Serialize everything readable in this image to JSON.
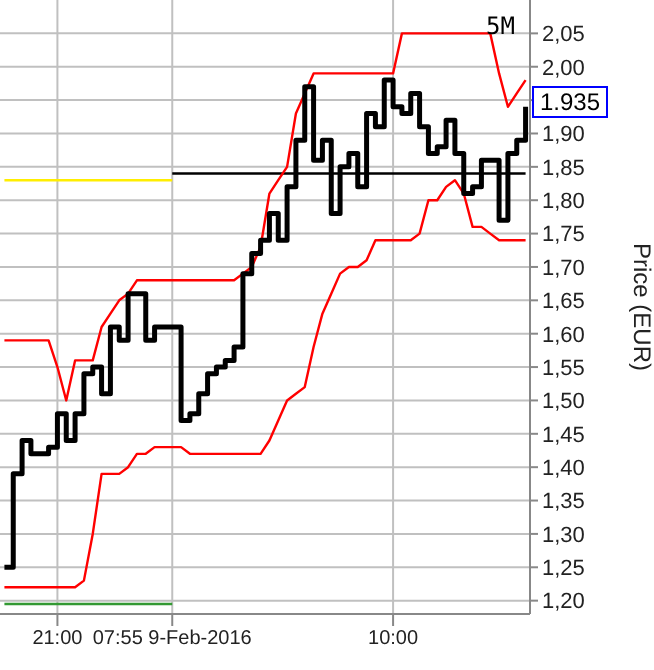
{
  "chart_data": {
    "type": "step",
    "ylabel": "Price (EUR)",
    "annotations": [
      "5M",
      "1.935"
    ],
    "categories": [
      null,
      null,
      null,
      null,
      null,
      null,
      "21:00",
      null,
      null,
      null,
      null,
      null,
      null,
      null,
      null,
      null,
      null,
      null,
      null,
      "07:55 9-Feb-2016",
      null,
      null,
      null,
      null,
      null,
      null,
      null,
      null,
      null,
      null,
      null,
      null,
      null,
      null,
      null,
      null,
      null,
      null,
      null,
      null,
      null,
      null,
      null,
      null,
      "10:00",
      null,
      null,
      null,
      null,
      null,
      null,
      null,
      null,
      null,
      null,
      null,
      null,
      null,
      null,
      null
    ],
    "ylim": [
      1.18,
      2.1
    ],
    "yticks": [
      {
        "value": 1.2,
        "label": "1,20"
      },
      {
        "value": 1.25,
        "label": "1,25"
      },
      {
        "value": 1.3,
        "label": "1,30"
      },
      {
        "value": 1.35,
        "label": "1,35"
      },
      {
        "value": 1.4,
        "label": "1,40"
      },
      {
        "value": 1.45,
        "label": "1,45"
      },
      {
        "value": 1.5,
        "label": "1,50"
      },
      {
        "value": 1.55,
        "label": "1,55"
      },
      {
        "value": 1.6,
        "label": "1,60"
      },
      {
        "value": 1.65,
        "label": "1,65"
      },
      {
        "value": 1.7,
        "label": "1,70"
      },
      {
        "value": 1.75,
        "label": "1,75"
      },
      {
        "value": 1.8,
        "label": "1,80"
      },
      {
        "value": 1.85,
        "label": "1,85"
      },
      {
        "value": 1.9,
        "label": "1,90"
      },
      {
        "value": 1.95,
        "label": null
      },
      {
        "value": 2.0,
        "label": "2,00"
      },
      {
        "value": 2.05,
        "label": "2,05"
      }
    ],
    "grid": true,
    "marker": "none",
    "line_style": "solid",
    "series": [
      {
        "type": "line",
        "color": "#ffee00",
        "values": [
          1.83,
          1.83,
          1.83,
          1.83,
          1.83,
          1.83,
          1.83,
          1.83,
          1.83,
          1.83,
          1.83,
          1.83,
          1.83,
          1.83,
          1.83,
          1.83,
          1.83,
          1.83,
          1.83,
          1.83,
          null,
          null,
          null,
          null,
          null,
          null,
          null,
          null,
          null,
          null,
          null,
          null,
          null,
          null,
          null,
          null,
          null,
          null,
          null,
          null,
          null,
          null,
          null,
          null,
          null,
          null,
          null,
          null,
          null,
          null,
          null,
          null,
          null,
          null,
          null,
          null,
          null,
          null,
          null,
          null
        ]
      },
      {
        "type": "line",
        "color": "#339933",
        "values": [
          1.195,
          1.195,
          1.195,
          1.195,
          1.195,
          1.195,
          1.195,
          1.195,
          1.195,
          1.195,
          1.195,
          1.195,
          1.195,
          1.195,
          1.195,
          1.195,
          1.195,
          1.195,
          1.195,
          1.195,
          null,
          null,
          null,
          null,
          null,
          null,
          null,
          null,
          null,
          null,
          null,
          null,
          null,
          null,
          null,
          null,
          null,
          null,
          null,
          null,
          null,
          null,
          null,
          null,
          null,
          null,
          null,
          null,
          null,
          null,
          null,
          null,
          null,
          null,
          null,
          null,
          null,
          null,
          null,
          null
        ]
      },
      {
        "type": "line",
        "color": "#000000",
        "values": [
          null,
          null,
          null,
          null,
          null,
          null,
          null,
          null,
          null,
          null,
          null,
          null,
          null,
          null,
          null,
          null,
          null,
          null,
          null,
          1.84,
          1.84,
          1.84,
          1.84,
          1.84,
          1.84,
          1.84,
          1.84,
          1.84,
          1.84,
          1.84,
          1.84,
          1.84,
          1.84,
          1.84,
          1.84,
          1.84,
          1.84,
          1.84,
          1.84,
          1.84,
          1.84,
          1.84,
          1.84,
          1.84,
          1.84,
          1.84,
          1.84,
          1.84,
          1.84,
          1.84,
          1.84,
          1.84,
          1.84,
          1.84,
          1.84,
          1.84,
          1.84,
          1.84,
          1.84,
          1.84
        ]
      },
      {
        "type": "line",
        "color": "#ff0000",
        "values": [
          1.59,
          1.59,
          1.59,
          1.59,
          1.59,
          1.59,
          1.55,
          1.5,
          1.56,
          1.56,
          1.56,
          1.61,
          1.63,
          1.65,
          1.66,
          1.68,
          1.68,
          1.68,
          1.68,
          1.68,
          1.68,
          1.68,
          1.68,
          1.68,
          1.68,
          1.68,
          1.68,
          1.69,
          1.7,
          1.73,
          1.81,
          1.83,
          1.85,
          1.93,
          1.96,
          1.99,
          1.99,
          1.99,
          1.99,
          1.99,
          1.99,
          1.99,
          1.99,
          1.99,
          1.99,
          2.05,
          2.05,
          2.05,
          2.05,
          2.05,
          2.05,
          2.05,
          2.05,
          2.05,
          2.05,
          2.05,
          1.99,
          1.94,
          1.96,
          1.98
        ]
      },
      {
        "type": "line",
        "color": "#ff0000",
        "values": [
          1.22,
          1.22,
          1.22,
          1.22,
          1.22,
          1.22,
          1.22,
          1.22,
          1.22,
          1.23,
          1.3,
          1.39,
          1.39,
          1.39,
          1.4,
          1.42,
          1.42,
          1.43,
          1.43,
          1.43,
          1.43,
          1.42,
          1.42,
          1.42,
          1.42,
          1.42,
          1.42,
          1.42,
          1.42,
          1.42,
          1.44,
          1.47,
          1.5,
          1.51,
          1.52,
          1.58,
          1.63,
          1.66,
          1.69,
          1.7,
          1.7,
          1.71,
          1.74,
          1.74,
          1.74,
          1.74,
          1.74,
          1.75,
          1.8,
          1.8,
          1.82,
          1.83,
          1.81,
          1.76,
          1.76,
          1.75,
          1.74,
          1.74,
          1.74,
          1.74
        ]
      },
      {
        "color": "#000000",
        "values": [
          1.25,
          1.39,
          1.44,
          1.42,
          1.42,
          1.43,
          1.48,
          1.44,
          1.48,
          1.54,
          1.55,
          1.51,
          1.61,
          1.59,
          1.66,
          1.66,
          1.59,
          1.61,
          1.61,
          1.61,
          1.47,
          1.48,
          1.51,
          1.54,
          1.55,
          1.56,
          1.58,
          1.69,
          1.72,
          1.74,
          1.78,
          1.74,
          1.82,
          1.89,
          1.97,
          1.86,
          1.89,
          1.78,
          1.85,
          1.87,
          1.82,
          1.93,
          1.91,
          1.98,
          1.94,
          1.93,
          1.96,
          1.91,
          1.87,
          1.88,
          1.92,
          1.87,
          1.81,
          1.82,
          1.86,
          1.86,
          1.77,
          1.87,
          1.89,
          1.94
        ]
      }
    ]
  }
}
